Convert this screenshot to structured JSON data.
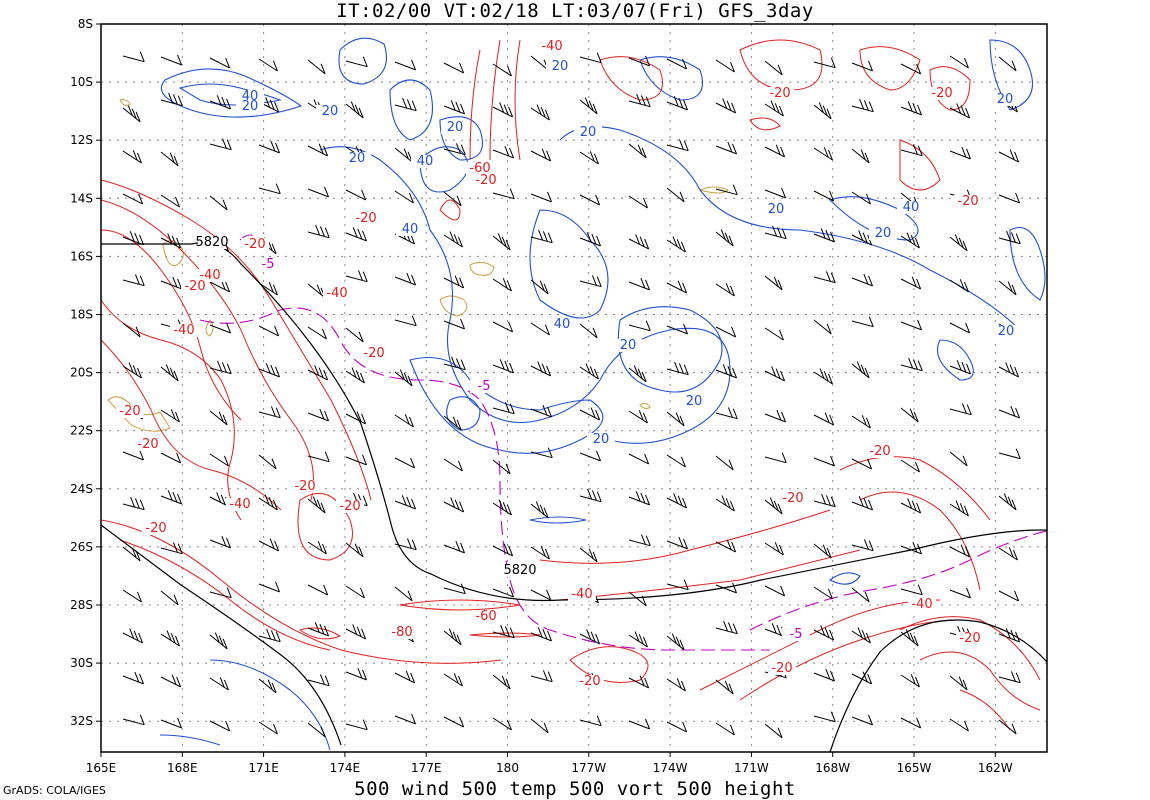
{
  "header": {
    "title": "IT:02/00 VT:02/18 LT:03/07(Fri) GFS_3day"
  },
  "footer": {
    "title": "500 wind 500 temp 500 vort 500 height",
    "credit": "GrADS: COLA/IGES"
  },
  "axes": {
    "lat_labels": [
      "8S",
      "10S",
      "12S",
      "14S",
      "16S",
      "18S",
      "20S",
      "22S",
      "24S",
      "26S",
      "28S",
      "30S",
      "32S"
    ],
    "lon_labels": [
      "165E",
      "168E",
      "171E",
      "174E",
      "177E",
      "180",
      "177W",
      "174W",
      "171W",
      "168W",
      "165W",
      "162W"
    ]
  },
  "colors": {
    "height": "#000000",
    "temp": "#e02020",
    "wind_field": "#2050d0",
    "vort": "#c000c0",
    "land": "#c8a040",
    "grid": "#888888"
  },
  "contour_labels": {
    "height": [
      "5820",
      "5820"
    ],
    "blue": [
      "40",
      "20",
      "20",
      "20",
      "40",
      "20",
      "40",
      "20",
      "20",
      "20",
      "20",
      "40",
      "20",
      "20",
      "20",
      "40",
      "20",
      "20"
    ],
    "red": [
      "-40",
      "-60",
      "-20",
      "-20",
      "-20",
      "-20",
      "-40",
      "-40",
      "-20",
      "-40",
      "-20",
      "-20",
      "-20",
      "-40",
      "-20",
      "-20",
      "-20",
      "-20",
      "-20",
      "-20",
      "-20",
      "-60",
      "-80",
      "-40",
      "-20",
      "-40",
      "-20",
      "-20"
    ],
    "magenta": [
      "-5",
      "-5",
      "-5"
    ]
  }
}
